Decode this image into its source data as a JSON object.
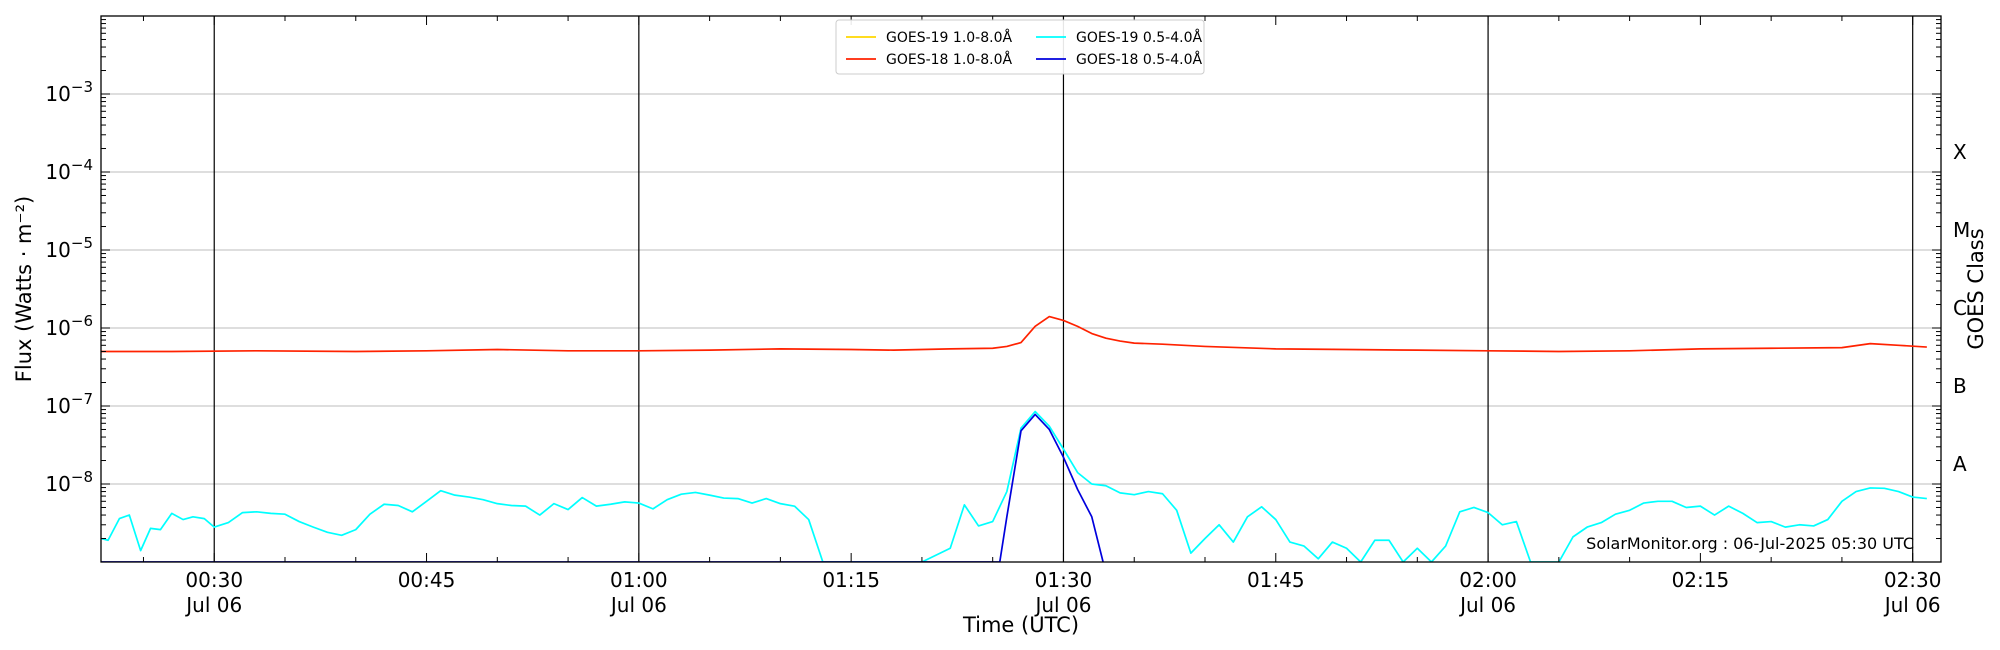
{
  "chart_data": {
    "type": "line",
    "title": "",
    "xlabel": "Time (UTC)",
    "ylabel": "Flux (Watts · m⁻²)",
    "right_label": "GOES Class",
    "credit": "SolarMonitor.org : 06-Jul-2025 05:30 UTC",
    "y_scale": "log",
    "ylim": [
      1e-09,
      0.01
    ],
    "xlim": [
      "00:22",
      "02:32"
    ],
    "x_ticks": [
      {
        "time": "00:30",
        "label": "00:30",
        "date": "Jul 06"
      },
      {
        "time": "00:45",
        "label": "00:45",
        "date": ""
      },
      {
        "time": "01:00",
        "label": "01:00",
        "date": "Jul 06"
      },
      {
        "time": "01:15",
        "label": "01:15",
        "date": ""
      },
      {
        "time": "01:30",
        "label": "01:30",
        "date": "Jul 06"
      },
      {
        "time": "01:45",
        "label": "01:45",
        "date": ""
      },
      {
        "time": "02:00",
        "label": "02:00",
        "date": "Jul 06"
      },
      {
        "time": "02:15",
        "label": "02:15",
        "date": ""
      },
      {
        "time": "02:30",
        "label": "02:30",
        "date": "Jul 06"
      }
    ],
    "y_ticks": [
      {
        "value": 1e-08,
        "base": "10",
        "exp": "−8"
      },
      {
        "value": 1e-07,
        "base": "10",
        "exp": "−7"
      },
      {
        "value": 1e-06,
        "base": "10",
        "exp": "−6"
      },
      {
        "value": 1e-05,
        "base": "10",
        "exp": "−5"
      },
      {
        "value": 0.0001,
        "base": "10",
        "exp": "−4"
      },
      {
        "value": 0.001,
        "base": "10",
        "exp": "−3"
      }
    ],
    "vlines": [
      "00:30",
      "01:00",
      "01:30",
      "02:00",
      "02:30"
    ],
    "classes": [
      {
        "label": "A",
        "flux": 1.8e-08
      },
      {
        "label": "B",
        "flux": 1.8e-07
      },
      {
        "label": "C",
        "flux": 1.8e-06
      },
      {
        "label": "M",
        "flux": 1.8e-05
      },
      {
        "label": "X",
        "flux": 0.00018
      }
    ],
    "legend_position": "top-center",
    "grid": "horizontal at decades",
    "series": [
      {
        "name": "GOES-19 1.0-8.0Å",
        "color": "#FFD700",
        "points": []
      },
      {
        "name": "GOES-18 1.0-8.0Å",
        "color": "#FF2200",
        "points": [
          [
            "00:22",
            5e-07
          ],
          [
            "00:27",
            5e-07
          ],
          [
            "00:33",
            5.1e-07
          ],
          [
            "00:40",
            5e-07
          ],
          [
            "00:45",
            5.1e-07
          ],
          [
            "00:50",
            5.3e-07
          ],
          [
            "00:55",
            5.1e-07
          ],
          [
            "01:00",
            5.1e-07
          ],
          [
            "01:05",
            5.2e-07
          ],
          [
            "01:10",
            5.4e-07
          ],
          [
            "01:15",
            5.3e-07
          ],
          [
            "01:18",
            5.2e-07
          ],
          [
            "01:22",
            5.4e-07
          ],
          [
            "01:25",
            5.5e-07
          ],
          [
            "01:26",
            5.8e-07
          ],
          [
            "01:27",
            6.5e-07
          ],
          [
            "01:28",
            1.05e-06
          ],
          [
            "01:29",
            1.4e-06
          ],
          [
            "01:30",
            1.25e-06
          ],
          [
            "01:31",
            1.05e-06
          ],
          [
            "01:32",
            8.5e-07
          ],
          [
            "01:33",
            7.4e-07
          ],
          [
            "01:34",
            6.8e-07
          ],
          [
            "01:35",
            6.4e-07
          ],
          [
            "01:37",
            6.2e-07
          ],
          [
            "01:40",
            5.8e-07
          ],
          [
            "01:45",
            5.4e-07
          ],
          [
            "01:50",
            5.3e-07
          ],
          [
            "01:55",
            5.2e-07
          ],
          [
            "02:00",
            5.1e-07
          ],
          [
            "02:05",
            5e-07
          ],
          [
            "02:10",
            5.1e-07
          ],
          [
            "02:15",
            5.4e-07
          ],
          [
            "02:20",
            5.5e-07
          ],
          [
            "02:25",
            5.6e-07
          ],
          [
            "02:27",
            6.3e-07
          ],
          [
            "02:29",
            6e-07
          ],
          [
            "02:31",
            5.7e-07
          ]
        ]
      },
      {
        "name": "GOES-19 0.5-4.0Å",
        "color": "#00FFFF",
        "points": [
          [
            "00:22",
            2e-09
          ],
          [
            "00:22.5",
            1.9e-09
          ],
          [
            "00:23.3",
            3.6e-09
          ],
          [
            "00:24",
            4e-09
          ],
          [
            "00:24.8",
            1.4e-09
          ],
          [
            "00:25.5",
            2.7e-09
          ],
          [
            "00:26.2",
            2.6e-09
          ],
          [
            "00:27",
            4.2e-09
          ],
          [
            "00:27.8",
            3.5e-09
          ],
          [
            "00:28.5",
            3.8e-09
          ],
          [
            "00:29.3",
            3.6e-09
          ],
          [
            "00:30",
            2.8e-09
          ],
          [
            "00:31",
            3.2e-09
          ],
          [
            "00:32",
            4.3e-09
          ],
          [
            "00:33",
            4.4e-09
          ],
          [
            "00:34",
            4.2e-09
          ],
          [
            "00:35",
            4.1e-09
          ],
          [
            "00:36",
            3.3e-09
          ],
          [
            "00:37",
            2.8e-09
          ],
          [
            "00:38",
            2.4e-09
          ],
          [
            "00:39",
            2.2e-09
          ],
          [
            "00:40",
            2.6e-09
          ],
          [
            "00:41",
            4.1e-09
          ],
          [
            "00:42",
            5.5e-09
          ],
          [
            "00:43",
            5.3e-09
          ],
          [
            "00:44",
            4.4e-09
          ],
          [
            "00:45",
            6e-09
          ],
          [
            "00:46",
            8.2e-09
          ],
          [
            "00:47",
            7.2e-09
          ],
          [
            "00:48",
            6.8e-09
          ],
          [
            "00:49",
            6.3e-09
          ],
          [
            "00:50",
            5.6e-09
          ],
          [
            "00:51",
            5.3e-09
          ],
          [
            "00:52",
            5.2e-09
          ],
          [
            "00:53",
            4e-09
          ],
          [
            "00:54",
            5.6e-09
          ],
          [
            "00:55",
            4.7e-09
          ],
          [
            "00:56",
            6.7e-09
          ],
          [
            "00:57",
            5.2e-09
          ],
          [
            "00:58",
            5.5e-09
          ],
          [
            "00:59",
            5.9e-09
          ],
          [
            "01:00",
            5.7e-09
          ],
          [
            "01:01",
            4.8e-09
          ],
          [
            "01:02",
            6.3e-09
          ],
          [
            "01:03",
            7.4e-09
          ],
          [
            "01:04",
            7.8e-09
          ],
          [
            "01:05",
            7.2e-09
          ],
          [
            "01:06",
            6.6e-09
          ],
          [
            "01:07",
            6.5e-09
          ],
          [
            "01:08",
            5.7e-09
          ],
          [
            "01:09",
            6.5e-09
          ],
          [
            "01:10",
            5.6e-09
          ],
          [
            "01:11",
            5.2e-09
          ],
          [
            "01:12",
            3.5e-09
          ],
          [
            "01:13",
            1e-09
          ],
          [
            "01:20",
            1e-09
          ],
          [
            "01:22",
            1.5e-09
          ],
          [
            "01:23",
            5.4e-09
          ],
          [
            "01:24",
            2.9e-09
          ],
          [
            "01:25",
            3.3e-09
          ],
          [
            "01:26",
            8e-09
          ],
          [
            "01:27",
            5.2e-08
          ],
          [
            "01:28",
            8.5e-08
          ],
          [
            "01:29",
            5.5e-08
          ],
          [
            "01:30",
            2.8e-08
          ],
          [
            "01:31",
            1.4e-08
          ],
          [
            "01:32",
            1e-08
          ],
          [
            "01:33",
            9.5e-09
          ],
          [
            "01:34",
            7.7e-09
          ],
          [
            "01:35",
            7.3e-09
          ],
          [
            "01:36",
            8e-09
          ],
          [
            "01:37",
            7.5e-09
          ],
          [
            "01:38",
            4.6e-09
          ],
          [
            "01:39",
            1.3e-09
          ],
          [
            "01:40",
            2e-09
          ],
          [
            "01:41",
            3e-09
          ],
          [
            "01:42",
            1.8e-09
          ],
          [
            "01:43",
            3.8e-09
          ],
          [
            "01:44",
            5.1e-09
          ],
          [
            "01:45",
            3.5e-09
          ],
          [
            "01:46",
            1.8e-09
          ],
          [
            "01:47",
            1.6e-09
          ],
          [
            "01:48",
            1.1e-09
          ],
          [
            "01:49",
            1.8e-09
          ],
          [
            "01:50",
            1.5e-09
          ],
          [
            "01:51",
            1e-09
          ],
          [
            "01:52",
            1.9e-09
          ],
          [
            "01:53",
            1.9e-09
          ],
          [
            "01:54",
            1e-09
          ],
          [
            "01:55",
            1.5e-09
          ],
          [
            "01:56",
            1e-09
          ],
          [
            "01:57",
            1.6e-09
          ],
          [
            "01:58",
            4.4e-09
          ],
          [
            "01:59",
            5e-09
          ],
          [
            "02:00",
            4.3e-09
          ],
          [
            "02:01",
            3e-09
          ],
          [
            "02:02",
            3.3e-09
          ],
          [
            "02:03",
            1e-09
          ],
          [
            "02:05",
            1e-09
          ],
          [
            "02:06",
            2.1e-09
          ],
          [
            "02:07",
            2.8e-09
          ],
          [
            "02:08",
            3.2e-09
          ],
          [
            "02:09",
            4.1e-09
          ],
          [
            "02:10",
            4.6e-09
          ],
          [
            "02:11",
            5.7e-09
          ],
          [
            "02:12",
            6e-09
          ],
          [
            "02:13",
            6e-09
          ],
          [
            "02:14",
            5e-09
          ],
          [
            "02:15",
            5.2e-09
          ],
          [
            "02:16",
            4e-09
          ],
          [
            "02:17",
            5.2e-09
          ],
          [
            "02:18",
            4.2e-09
          ],
          [
            "02:19",
            3.2e-09
          ],
          [
            "02:20",
            3.3e-09
          ],
          [
            "02:21",
            2.8e-09
          ],
          [
            "02:22",
            3e-09
          ],
          [
            "02:23",
            2.9e-09
          ],
          [
            "02:24",
            3.5e-09
          ],
          [
            "02:25",
            6e-09
          ],
          [
            "02:26",
            8e-09
          ],
          [
            "02:27",
            8.9e-09
          ],
          [
            "02:28",
            8.8e-09
          ],
          [
            "02:29",
            8e-09
          ],
          [
            "02:30",
            6.8e-09
          ],
          [
            "02:31",
            6.5e-09
          ]
        ]
      },
      {
        "name": "GOES-18 0.5-4.0Å",
        "color": "#0000DD",
        "points": [
          [
            "00:22",
            1e-09
          ],
          [
            "01:25.5",
            1e-09
          ],
          [
            "01:26",
            3.8e-09
          ],
          [
            "01:27",
            4.8e-08
          ],
          [
            "01:28",
            7.8e-08
          ],
          [
            "01:29",
            5e-08
          ],
          [
            "01:30",
            2.2e-08
          ],
          [
            "01:31",
            8.5e-09
          ],
          [
            "01:32",
            3.8e-09
          ],
          [
            "01:32.8",
            1e-09
          ]
        ]
      }
    ]
  }
}
